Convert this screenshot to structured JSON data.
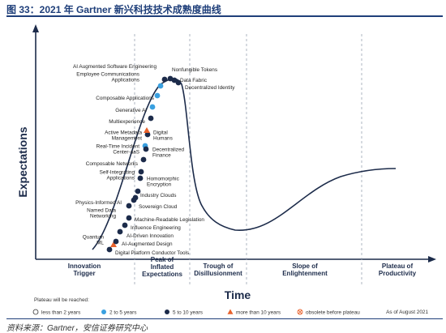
{
  "figure_title": "图 33：2021 年 Gartner 新兴科技技术成熟度曲线",
  "source_note": "资料来源：Gartner，安信证券研究中心",
  "chart_data": {
    "type": "line",
    "title": "",
    "xlabel": "Time",
    "ylabel": "Expectations",
    "phases": [
      [
        "Innovation",
        "Trigger"
      ],
      [
        "Peak of",
        "Inflated",
        "Expectations"
      ],
      [
        "Trough of",
        "Disillusionment"
      ],
      [
        "Slope of",
        "Enlightenment"
      ],
      [
        "Plateau of",
        "Productivity"
      ]
    ],
    "technologies": [
      {
        "name": "AI Augmented Software Engineering",
        "plateau": "5 to 10 years"
      },
      {
        "name": "Nonfungible Tokens",
        "plateau": "5 to 10 years"
      },
      {
        "name": "Employee Communications Applications",
        "plateau": "2 to 5 years"
      },
      {
        "name": "Data Fabric",
        "plateau": "5 to 10 years"
      },
      {
        "name": "Decentralized Identity",
        "plateau": "5 to 10 years"
      },
      {
        "name": "Composable Applications",
        "plateau": "2 to 5 years"
      },
      {
        "name": "Generative AI",
        "plateau": "2 to 5 years"
      },
      {
        "name": "Multiexperience",
        "plateau": "5 to 10 years"
      },
      {
        "name": "Active Metadata Management",
        "plateau": "5 to 10 years"
      },
      {
        "name": "Digital Humans",
        "plateau": "more than 10 years"
      },
      {
        "name": "Real-Time Incident Center-aaS",
        "plateau": "2 to 5 years"
      },
      {
        "name": "Decentralized Finance",
        "plateau": "5 to 10 years"
      },
      {
        "name": "Composable Networks",
        "plateau": "5 to 10 years"
      },
      {
        "name": "Self-Integrating Applications",
        "plateau": "5 to 10 years"
      },
      {
        "name": "Homomorphic Encryption",
        "plateau": "5 to 10 years"
      },
      {
        "name": "Industry Clouds",
        "plateau": "5 to 10 years"
      },
      {
        "name": "Physics-Informed AI",
        "plateau": "5 to 10 years"
      },
      {
        "name": "Sovereign Cloud",
        "plateau": "5 to 10 years"
      },
      {
        "name": "Named Data Networking",
        "plateau": "5 to 10 years"
      },
      {
        "name": "Machine-Readable Legislation",
        "plateau": "5 to 10 years"
      },
      {
        "name": "Influence Engineering",
        "plateau": "5 to 10 years"
      },
      {
        "name": "AI-Driven Innovation",
        "plateau": "5 to 10 years"
      },
      {
        "name": "Quantum ML",
        "plateau": "more than 10 years"
      },
      {
        "name": "AI-Augmented Design",
        "plateau": "5 to 10 years"
      },
      {
        "name": "Digital Platform Conductor Tools",
        "plateau": "5 to 10 years"
      }
    ],
    "legend": {
      "title": "Plateau will be reached:",
      "items": [
        {
          "label": "less than 2 years",
          "marker": "circle-white",
          "color": "#ffffff"
        },
        {
          "label": "2 to 5 years",
          "marker": "circle",
          "color": "#3aa0e0"
        },
        {
          "label": "5 to 10 years",
          "marker": "circle",
          "color": "#1c2b4a"
        },
        {
          "label": "more than 10 years",
          "marker": "triangle",
          "color": "#e8622c"
        },
        {
          "label": "obsolete before plateau",
          "marker": "circle-x",
          "color": "#e8622c"
        }
      ],
      "as_of": "As of August 2021"
    },
    "colors": {
      "curve": "#1c2b4a",
      "axis": "#1c2b4a",
      "divider": "#9aa3b2",
      "2_to_5": "#3aa0e0",
      "5_to_10": "#1c2b4a",
      "more_than_10": "#e8622c"
    }
  }
}
